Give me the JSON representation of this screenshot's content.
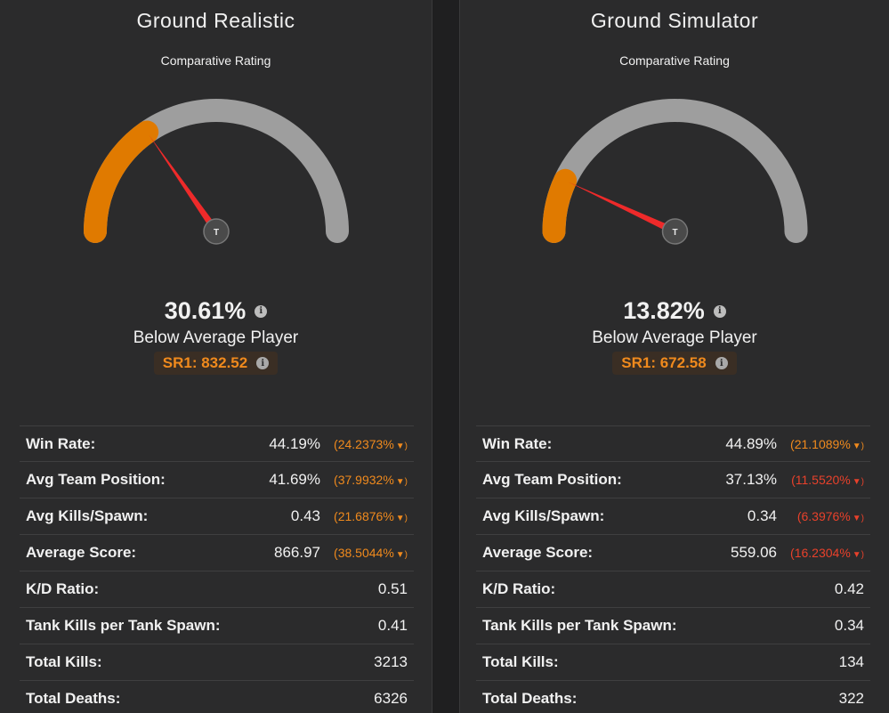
{
  "colors": {
    "accent_orange": "#e07a00",
    "track_gray": "#9e9e9e",
    "needle_red": "#ee2a2a",
    "change_orange": "#f08a1d",
    "change_red": "#e8412b"
  },
  "panels": [
    {
      "title": "Ground Realistic",
      "subtitle": "Comparative Rating",
      "gauge": {
        "fraction": 0.3061,
        "hub_label": "T"
      },
      "percent": "30.61%",
      "info_glyph": "i",
      "rank": "Below Average Player",
      "sr": "SR1: 832.52",
      "stats": [
        {
          "label": "Win Rate:",
          "value": "44.19%",
          "change": "(24.2373%",
          "arrow": "▼)",
          "tone": "orange"
        },
        {
          "label": "Avg Team Position:",
          "value": "41.69%",
          "change": "(37.9932%",
          "arrow": "▼)",
          "tone": "orange"
        },
        {
          "label": "Avg Kills/Spawn:",
          "value": "0.43",
          "change": "(21.6876%",
          "arrow": "▼)",
          "tone": "orange"
        },
        {
          "label": "Average Score:",
          "value": "866.97",
          "change": "(38.5044%",
          "arrow": "▼)",
          "tone": "orange"
        },
        {
          "label": "K/D Ratio:",
          "value": "0.51"
        },
        {
          "label": "Tank Kills per Tank Spawn:",
          "value": "0.41"
        },
        {
          "label": "Total Kills:",
          "value": "3213"
        },
        {
          "label": "Total Deaths:",
          "value": "6326"
        }
      ]
    },
    {
      "title": "Ground Simulator",
      "subtitle": "Comparative Rating",
      "gauge": {
        "fraction": 0.1382,
        "hub_label": "T"
      },
      "percent": "13.82%",
      "info_glyph": "i",
      "rank": "Below Average Player",
      "sr": "SR1: 672.58",
      "stats": [
        {
          "label": "Win Rate:",
          "value": "44.89%",
          "change": "(21.1089%",
          "arrow": "▼)",
          "tone": "orange"
        },
        {
          "label": "Avg Team Position:",
          "value": "37.13%",
          "change": "(11.5520%",
          "arrow": "▼)",
          "tone": "red"
        },
        {
          "label": "Avg Kills/Spawn:",
          "value": "0.34",
          "change": "(6.3976%",
          "arrow": "▼)",
          "tone": "red"
        },
        {
          "label": "Average Score:",
          "value": "559.06",
          "change": "(16.2304%",
          "arrow": "▼)",
          "tone": "red"
        },
        {
          "label": "K/D Ratio:",
          "value": "0.42"
        },
        {
          "label": "Tank Kills per Tank Spawn:",
          "value": "0.34"
        },
        {
          "label": "Total Kills:",
          "value": "134"
        },
        {
          "label": "Total Deaths:",
          "value": "322"
        }
      ]
    }
  ]
}
